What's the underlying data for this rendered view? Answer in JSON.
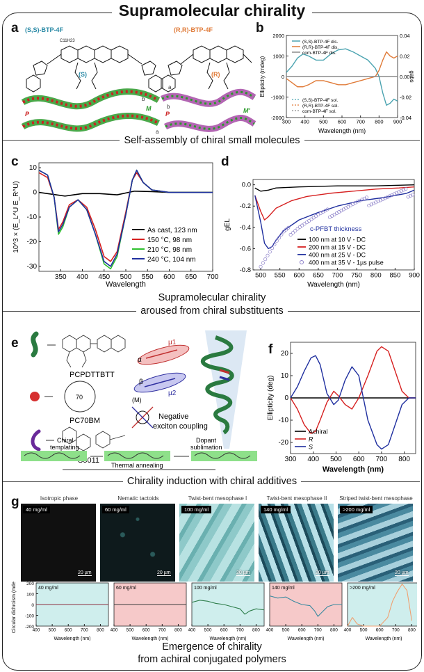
{
  "title": "Supramolecular chirality",
  "sections": {
    "s1": "Self-assembly of chiral small molecules",
    "s2_l1": "Supramolecular chirality",
    "s2_l2": "aroused from chiral substituents",
    "s3": "Chirality induction with chiral additives",
    "s4_l1": "Emergence of chirality",
    "s4_l2": "from achiral conjugated polymers"
  },
  "panel_labels": [
    "a",
    "b",
    "c",
    "d",
    "e",
    "f",
    "g"
  ],
  "panel_a": {
    "left_title": "(S,S)-BTP-4F",
    "right_title": "(R,R)-BTP-4F",
    "left_center": "(S)",
    "right_center": "(R)",
    "left_helix": "P",
    "left_helix2": "M",
    "right_helix": "P",
    "right_helix2": "M'",
    "left_axis_b": "b",
    "left_axis_a": "a",
    "right_axis_a": "a",
    "right_axis_b": "b",
    "alkyl": "C11H23"
  },
  "panel_e": {
    "polymer": "PCPDTTBTT",
    "fullerene": "PC70BM",
    "dopant": "S5011",
    "alpha": "α",
    "beta": "β",
    "mu1": "μ1",
    "mu2": "μ2",
    "M": "(M)",
    "coupling_l1": "Negative",
    "coupling_l2": "exciton coupling",
    "chiral_templating_l1": "Chiral",
    "chiral_templating_l2": "templating",
    "dopant_sub_l1": "Dopant",
    "dopant_sub_l2": "sublimation",
    "thermal": "Thermal annealing",
    "c70": "70"
  },
  "panel_g": {
    "phases": [
      "Isotropic phase",
      "Nematic tactoids",
      "Twist-bent mesophase I",
      "Twist-bent mesophase II",
      "Striped twist-bent mesophase"
    ],
    "concs": [
      "40 mg/ml",
      "60 mg/ml",
      "100 mg/ml",
      "140 mg/ml",
      ">200 mg/ml"
    ],
    "scalebar": "20 µm",
    "colors": {
      "bg_blue": "#cfeeed",
      "bg_pink": "#f6c9c9"
    }
  },
  "chart_data": [
    {
      "id": "b",
      "type": "line",
      "xlabel": "Wavelength (nm)",
      "ylabel": "Ellipticity (mdeg)",
      "y2label": "gabs",
      "xlim": [
        300,
        900
      ],
      "ylim": [
        -2000,
        2000
      ],
      "y2lim": [
        -0.04,
        0.04
      ],
      "xticks": [
        "300",
        "400",
        "500",
        "600",
        "700",
        "800",
        "900"
      ],
      "yticks": [
        "-2000",
        "-1000",
        "0",
        "1000",
        "2000"
      ],
      "y2ticks": [
        "-0.04",
        "-0.02",
        "0.00",
        "0.02",
        "0.04"
      ],
      "legend_top": [
        "(S,S)-BTP-4F dis.",
        "(R,R)-BTP-4F dis.",
        "com-BTP-4F dis."
      ],
      "legend_bottom": [
        "(S,S)-BTP-4F sol.",
        "(R,R)-BTP-4F sol.",
        "com-BTP-4F sol."
      ],
      "series": [
        {
          "name": "(S,S)-BTP-4F dis.",
          "color": "#4aa3b0",
          "x": [
            300,
            330,
            360,
            390,
            420,
            460,
            500,
            540,
            580,
            620,
            660,
            700,
            740,
            780,
            800,
            820,
            840,
            860,
            880,
            900
          ],
          "y": [
            200,
            500,
            900,
            1100,
            1000,
            800,
            800,
            1100,
            1300,
            1350,
            1200,
            1000,
            800,
            400,
            0,
            -800,
            -1400,
            -1300,
            -1100,
            -1200
          ]
        },
        {
          "name": "(R,R)-BTP-4F dis.",
          "color": "#e07b39",
          "x": [
            300,
            330,
            360,
            390,
            420,
            460,
            500,
            540,
            580,
            620,
            660,
            700,
            740,
            780,
            800,
            820,
            840,
            860,
            880,
            900
          ],
          "y": [
            -100,
            -300,
            -500,
            -500,
            -400,
            -200,
            -200,
            -300,
            -400,
            -400,
            -300,
            -200,
            -100,
            0,
            300,
            800,
            1200,
            1000,
            900,
            1000
          ]
        },
        {
          "name": "com-BTP-4F dis.",
          "color": "#8a8a8a",
          "x": [
            300,
            400,
            500,
            600,
            700,
            800,
            900
          ],
          "y": [
            0,
            0,
            0,
            0,
            0,
            0,
            0
          ]
        }
      ]
    },
    {
      "id": "c",
      "type": "line",
      "xlabel": "Wavelength",
      "ylabel": "10^3 × (E_L^U E_R^U)",
      "xlim": [
        300,
        700
      ],
      "ylim": [
        -32,
        12
      ],
      "xticks": [
        "350",
        "400",
        "450",
        "500",
        "550",
        "600",
        "650",
        "700"
      ],
      "yticks": [
        "-30",
        "-20",
        "-10",
        "0",
        "10"
      ],
      "series": [
        {
          "name": "As cast, 123 nm",
          "color": "#000000",
          "x": [
            300,
            320,
            340,
            360,
            380,
            400,
            440,
            480,
            520,
            560,
            600,
            700
          ],
          "y": [
            0,
            -0.5,
            -1,
            -1.5,
            -1,
            -0.5,
            -0.5,
            -1,
            0.5,
            0.3,
            0,
            0
          ]
        },
        {
          "name": "150 °C, 98 nm",
          "color": "#d62020",
          "x": [
            300,
            320,
            335,
            345,
            355,
            370,
            390,
            410,
            430,
            450,
            465,
            480,
            500,
            515,
            525,
            540,
            560,
            600,
            700
          ],
          "y": [
            8,
            6,
            -2,
            -15,
            -12,
            -5,
            -3,
            -6,
            -15,
            -26,
            -28,
            -24,
            -8,
            5,
            8,
            4,
            1,
            0,
            0
          ]
        },
        {
          "name": "210 °C, 98 nm",
          "color": "#2fc02f",
          "x": [
            300,
            320,
            335,
            345,
            355,
            370,
            390,
            410,
            430,
            450,
            465,
            480,
            500,
            515,
            525,
            540,
            560,
            600,
            700
          ],
          "y": [
            9,
            7,
            -2,
            -17,
            -14,
            -6,
            -3,
            -7,
            -17,
            -29,
            -31,
            -26,
            -9,
            5,
            9,
            4,
            1,
            0,
            0
          ]
        },
        {
          "name": "240 °C, 104 nm",
          "color": "#1f2f9f",
          "x": [
            300,
            320,
            335,
            345,
            355,
            370,
            390,
            410,
            430,
            450,
            465,
            480,
            500,
            515,
            525,
            540,
            560,
            600,
            700
          ],
          "y": [
            9,
            7,
            -2,
            -16,
            -13,
            -6,
            -3,
            -7,
            -17,
            -28,
            -30,
            -25,
            -9,
            5,
            9,
            4,
            1,
            0,
            0
          ]
        }
      ]
    },
    {
      "id": "d",
      "type": "line",
      "xlabel": "Wavelength (nm)",
      "ylabel": "gEL",
      "xlim": [
        480,
        900
      ],
      "ylim": [
        -0.8,
        0.05
      ],
      "xticks": [
        "500",
        "550",
        "600",
        "650",
        "700",
        "750",
        "800",
        "850",
        "900"
      ],
      "yticks": [
        "0.0",
        "-0.2",
        "-0.4",
        "-0.6",
        "-0.8"
      ],
      "legend_title": "c-PFBT thickness",
      "series": [
        {
          "name": "100 nm at 10 V - DC",
          "color": "#000000",
          "x": [
            485,
            500,
            520,
            540,
            600,
            700,
            800,
            900
          ],
          "y": [
            -0.03,
            -0.06,
            -0.05,
            -0.03,
            -0.02,
            -0.01,
            -0.01,
            0
          ]
        },
        {
          "name": "200 nm at 15 V - DC",
          "color": "#d62020",
          "x": [
            485,
            500,
            510,
            520,
            540,
            580,
            620,
            680,
            740,
            800,
            860,
            900
          ],
          "y": [
            -0.1,
            -0.25,
            -0.33,
            -0.3,
            -0.22,
            -0.15,
            -0.11,
            -0.08,
            -0.06,
            -0.04,
            -0.03,
            -0.02
          ]
        },
        {
          "name": "400 nm at 25 V - DC",
          "color": "#1f2f9f",
          "x": [
            485,
            500,
            510,
            520,
            530,
            540,
            560,
            600,
            650,
            700,
            760,
            820,
            880,
            900
          ],
          "y": [
            -0.1,
            -0.35,
            -0.55,
            -0.6,
            -0.58,
            -0.52,
            -0.43,
            -0.33,
            -0.26,
            -0.2,
            -0.15,
            -0.12,
            -0.08,
            -0.05
          ]
        },
        {
          "name": "400 nm at 35 V - 1µs pulse",
          "color": "#8b7fc8",
          "x": [
            500,
            520,
            540,
            560,
            600,
            650,
            700,
            750,
            800,
            850,
            900
          ],
          "y": [
            -0.75,
            -0.65,
            -0.55,
            -0.47,
            -0.38,
            -0.3,
            -0.24,
            -0.18,
            -0.14,
            -0.1,
            -0.06
          ]
        }
      ]
    },
    {
      "id": "f",
      "type": "line",
      "xlabel": "Wavelength (nm)",
      "ylabel": "Ellipticity (deg)",
      "xlim": [
        300,
        850
      ],
      "ylim": [
        -25,
        25
      ],
      "xticks": [
        "300",
        "400",
        "500",
        "600",
        "700",
        "800"
      ],
      "yticks": [
        "-20",
        "-10",
        "0",
        "10",
        "20"
      ],
      "series": [
        {
          "name": "Achiral",
          "color": "#000000",
          "x": [
            300,
            850
          ],
          "y": [
            0,
            0
          ]
        },
        {
          "name": "R",
          "color": "#d62020",
          "x": [
            300,
            330,
            360,
            390,
            410,
            430,
            460,
            490,
            510,
            540,
            570,
            600,
            640,
            680,
            700,
            730,
            760,
            790,
            820,
            850
          ],
          "y": [
            0,
            -5,
            -12,
            -16,
            -15,
            -10,
            -2,
            3,
            1,
            -3,
            -5,
            0,
            10,
            21,
            23,
            21,
            12,
            3,
            0,
            0
          ]
        },
        {
          "name": "S",
          "color": "#1f2f9f",
          "x": [
            300,
            330,
            360,
            390,
            410,
            430,
            460,
            490,
            510,
            540,
            570,
            600,
            640,
            680,
            700,
            730,
            760,
            790,
            820,
            850
          ],
          "y": [
            0,
            5,
            12,
            18,
            19,
            15,
            2,
            -3,
            -1,
            8,
            14,
            10,
            -10,
            -21,
            -23,
            -21,
            -12,
            -3,
            0,
            0
          ]
        }
      ]
    },
    {
      "id": "g",
      "type": "line",
      "ylabel": "Circular dichroism (mdeg)",
      "xlabel": "Wavelength (nm)",
      "xlim": [
        400,
        850
      ],
      "ylim": [
        -200,
        200
      ],
      "xticks": [
        "400",
        "500",
        "600",
        "700",
        "800"
      ],
      "yticks": [
        "200",
        "100",
        "0",
        "-100",
        "-200"
      ],
      "series": [
        {
          "name": "40 mg/ml",
          "color": "#8e2e40",
          "x": [
            400,
            850
          ],
          "y": [
            0,
            0
          ]
        },
        {
          "name": "60 mg/ml",
          "color": "#3a3a3a",
          "x": [
            400,
            850
          ],
          "y": [
            0,
            0
          ]
        },
        {
          "name": "100 mg/ml",
          "color": "#2e7d4a",
          "x": [
            400,
            450,
            500,
            550,
            600,
            650,
            700,
            730,
            760,
            800,
            850
          ],
          "y": [
            20,
            40,
            30,
            10,
            0,
            -20,
            -40,
            -90,
            -60,
            -40,
            -50
          ]
        },
        {
          "name": "140 mg/ml",
          "color": "#3a8aa0",
          "x": [
            400,
            450,
            500,
            550,
            600,
            650,
            680,
            700,
            720,
            760,
            800,
            850
          ],
          "y": [
            80,
            60,
            70,
            30,
            0,
            -10,
            -60,
            -110,
            -80,
            -20,
            0,
            0
          ]
        },
        {
          "name": ">200 mg/ml",
          "color": "#f0a070",
          "x": [
            400,
            430,
            460,
            500,
            550,
            600,
            650,
            680,
            710,
            740,
            770,
            800
          ],
          "y": [
            -200,
            -120,
            -180,
            -220,
            -230,
            -210,
            -120,
            30,
            120,
            190,
            130,
            -150
          ]
        }
      ]
    }
  ]
}
